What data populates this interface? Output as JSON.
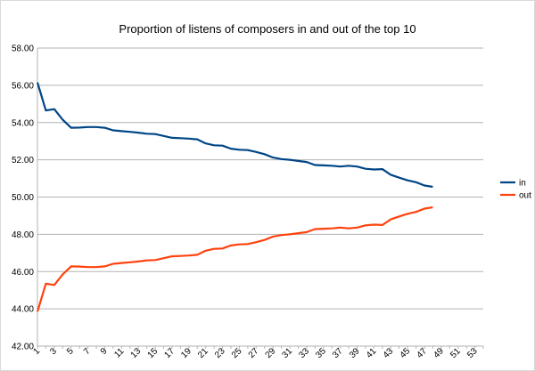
{
  "chart_data": {
    "type": "line",
    "title": "Proportion of listens of composers in and out of the top 10",
    "xlabel": "",
    "ylabel": "",
    "ylim": [
      42,
      58
    ],
    "y_ticks": [
      "42.00",
      "44.00",
      "46.00",
      "48.00",
      "50.00",
      "52.00",
      "54.00",
      "56.00",
      "58.00"
    ],
    "xlim": [
      1,
      54
    ],
    "x_ticks": [
      "1",
      "3",
      "5",
      "7",
      "9",
      "11",
      "13",
      "15",
      "17",
      "19",
      "21",
      "23",
      "25",
      "27",
      "29",
      "31",
      "33",
      "35",
      "37",
      "39",
      "41",
      "43",
      "45",
      "47",
      "49",
      "51",
      "53"
    ],
    "grid": "horizontal",
    "legend_position": "right",
    "series": [
      {
        "name": "in",
        "color": "#004586",
        "x": [
          1,
          2,
          3,
          4,
          5,
          6,
          7,
          8,
          9,
          10,
          11,
          12,
          13,
          14,
          15,
          16,
          17,
          18,
          19,
          20,
          21,
          22,
          23,
          24,
          25,
          26,
          27,
          28,
          29,
          30,
          31,
          32,
          33,
          34,
          35,
          36,
          37,
          38,
          39,
          40,
          41,
          42,
          43,
          44,
          45,
          46,
          47,
          48
        ],
        "values": [
          56.15,
          54.65,
          54.72,
          54.15,
          53.72,
          53.73,
          53.76,
          53.76,
          53.72,
          53.58,
          53.54,
          53.5,
          53.46,
          53.4,
          53.38,
          53.28,
          53.18,
          53.16,
          53.14,
          53.1,
          52.88,
          52.78,
          52.76,
          52.6,
          52.54,
          52.52,
          52.42,
          52.3,
          52.12,
          52.04,
          52.0,
          51.94,
          51.88,
          51.72,
          51.7,
          51.68,
          51.64,
          51.68,
          51.64,
          51.52,
          51.48,
          51.5,
          51.2,
          51.04,
          50.9,
          50.8,
          50.62,
          50.55
        ]
      },
      {
        "name": "out",
        "color": "#ff420e",
        "x": [
          1,
          2,
          3,
          4,
          5,
          6,
          7,
          8,
          9,
          10,
          11,
          12,
          13,
          14,
          15,
          16,
          17,
          18,
          19,
          20,
          21,
          22,
          23,
          24,
          25,
          26,
          27,
          28,
          29,
          30,
          31,
          32,
          33,
          34,
          35,
          36,
          37,
          38,
          39,
          40,
          41,
          42,
          43,
          44,
          45,
          46,
          47,
          48
        ],
        "values": [
          43.85,
          45.35,
          45.28,
          45.85,
          46.28,
          46.27,
          46.24,
          46.24,
          46.28,
          46.42,
          46.46,
          46.5,
          46.54,
          46.6,
          46.62,
          46.72,
          46.82,
          46.84,
          46.86,
          46.9,
          47.12,
          47.22,
          47.24,
          47.4,
          47.46,
          47.48,
          47.58,
          47.7,
          47.88,
          47.96,
          48.0,
          48.06,
          48.12,
          48.28,
          48.3,
          48.32,
          48.36,
          48.32,
          48.36,
          48.48,
          48.52,
          48.5,
          48.8,
          48.96,
          49.1,
          49.2,
          49.38,
          49.45
        ]
      }
    ]
  }
}
